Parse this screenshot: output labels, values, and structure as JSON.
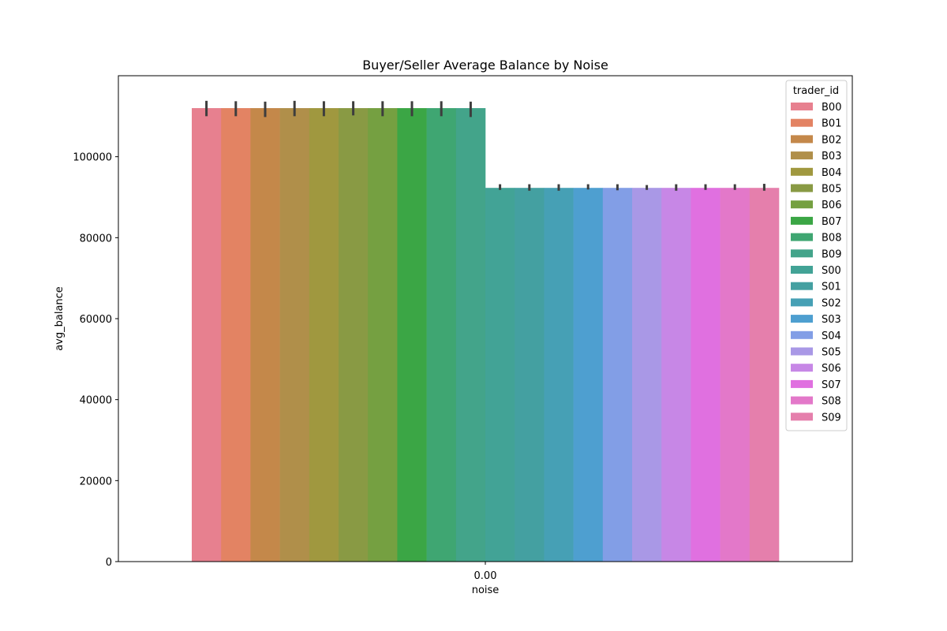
{
  "chart_data": {
    "type": "bar",
    "title": "Buyer/Seller Average Balance by Noise",
    "xlabel": "noise",
    "ylabel": "avg_balance",
    "categories": [
      "0.00"
    ],
    "ylim": [
      0,
      120000
    ],
    "yticks": [
      0,
      20000,
      40000,
      60000,
      80000,
      100000
    ],
    "grid": false,
    "legend": {
      "title": "trader_id",
      "placement": "top-right"
    },
    "error_bars": true,
    "series": [
      {
        "name": "B00",
        "color": "#e7808f",
        "values": [
          112000
        ],
        "err": [
          110000,
          113800
        ]
      },
      {
        "name": "B01",
        "color": "#e38363",
        "values": [
          112000
        ],
        "err": [
          110000,
          113700
        ]
      },
      {
        "name": "B02",
        "color": "#c4884a",
        "values": [
          112000
        ],
        "err": [
          109800,
          113600
        ]
      },
      {
        "name": "B03",
        "color": "#b08f4a",
        "values": [
          112000
        ],
        "err": [
          110000,
          113800
        ]
      },
      {
        "name": "B04",
        "color": "#a0983f",
        "values": [
          112000
        ],
        "err": [
          110000,
          113700
        ]
      },
      {
        "name": "B05",
        "color": "#899a44",
        "values": [
          112000
        ],
        "err": [
          110200,
          113700
        ]
      },
      {
        "name": "B06",
        "color": "#75a041",
        "values": [
          112000
        ],
        "err": [
          110000,
          113700
        ]
      },
      {
        "name": "B07",
        "color": "#3ba645",
        "values": [
          112000
        ],
        "err": [
          110000,
          113700
        ]
      },
      {
        "name": "B08",
        "color": "#3fa672",
        "values": [
          112000
        ],
        "err": [
          110000,
          113700
        ]
      },
      {
        "name": "B09",
        "color": "#43a48a",
        "values": [
          112000
        ],
        "err": [
          109800,
          113600
        ]
      },
      {
        "name": "S00",
        "color": "#42a396",
        "values": [
          92300
        ],
        "err": [
          91800,
          93200
        ]
      },
      {
        "name": "S01",
        "color": "#44a0a1",
        "values": [
          92300
        ],
        "err": [
          91600,
          93200
        ]
      },
      {
        "name": "S02",
        "color": "#46a0b5",
        "values": [
          92300
        ],
        "err": [
          91600,
          93200
        ]
      },
      {
        "name": "S03",
        "color": "#4e9fd0",
        "values": [
          92300
        ],
        "err": [
          91900,
          93200
        ]
      },
      {
        "name": "S04",
        "color": "#829ee6",
        "values": [
          92300
        ],
        "err": [
          91700,
          93200
        ]
      },
      {
        "name": "S05",
        "color": "#a998e6",
        "values": [
          92300
        ],
        "err": [
          91800,
          93000
        ]
      },
      {
        "name": "S06",
        "color": "#c787e6",
        "values": [
          92300
        ],
        "err": [
          91600,
          93200
        ]
      },
      {
        "name": "S07",
        "color": "#e070e0",
        "values": [
          92300
        ],
        "err": [
          91800,
          93200
        ]
      },
      {
        "name": "S08",
        "color": "#e378c9",
        "values": [
          92300
        ],
        "err": [
          91800,
          93200
        ]
      },
      {
        "name": "S09",
        "color": "#e57fac",
        "values": [
          92300
        ],
        "err": [
          91600,
          93300
        ]
      }
    ]
  }
}
